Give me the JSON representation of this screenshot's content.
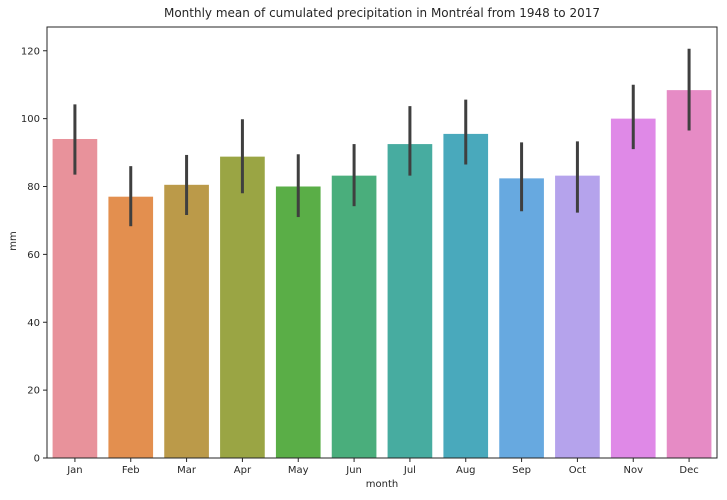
{
  "chart_data": {
    "type": "bar",
    "title": "Monthly mean of cumulated precipitation in Montréal from 1948 to 2017",
    "xlabel": "month",
    "ylabel": "mm",
    "ylim": [
      0,
      127
    ],
    "yticks": [
      0,
      20,
      40,
      60,
      80,
      100,
      120
    ],
    "categories": [
      "Jan",
      "Feb",
      "Mar",
      "Apr",
      "May",
      "Jun",
      "Jul",
      "Aug",
      "Sep",
      "Oct",
      "Nov",
      "Dec"
    ],
    "values": [
      94.0,
      77.0,
      80.5,
      88.8,
      80.0,
      83.2,
      92.5,
      95.5,
      82.4,
      83.2,
      100.0,
      108.4
    ],
    "ci_low": [
      83.5,
      68.3,
      71.6,
      78.0,
      71.0,
      74.2,
      83.2,
      86.5,
      72.7,
      72.3,
      91.0,
      96.5
    ],
    "ci_high": [
      104.2,
      86.0,
      89.3,
      99.8,
      89.5,
      92.5,
      103.7,
      105.6,
      93.0,
      93.3,
      110.0,
      120.6
    ],
    "colors": [
      "#e8929b",
      "#e38f4f",
      "#bb9a49",
      "#9aa544",
      "#5aae47",
      "#4aae7c",
      "#47aca0",
      "#49a9bc",
      "#67a9e0",
      "#b5a3ec",
      "#df89e7",
      "#e68bc5"
    ],
    "errorbar_color": "#3f3f3f",
    "grid": false,
    "legend": "none"
  }
}
